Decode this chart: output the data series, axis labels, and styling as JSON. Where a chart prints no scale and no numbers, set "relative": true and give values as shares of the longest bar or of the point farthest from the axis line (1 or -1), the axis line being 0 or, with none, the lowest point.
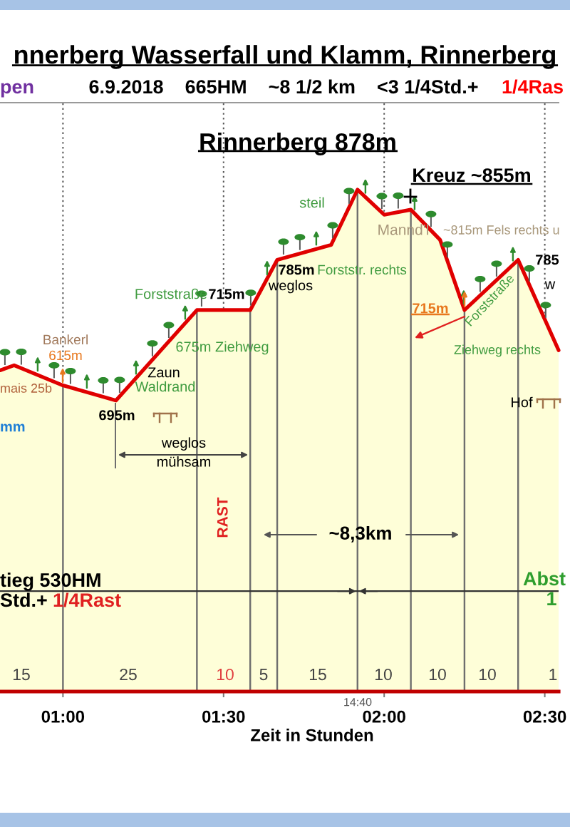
{
  "chart_data": {
    "type": "area",
    "title": "nnerberg Wasserfall und Klamm, Rinnerberg",
    "subtitle": "6.9.2018    665HM    ~8 1/2 km    <3 1/4Std.+",
    "xlabel": "Zeit in Stunden",
    "relative": true,
    "x": [
      0.804,
      0.848,
      1.0,
      1.165,
      1.417,
      1.583,
      1.667,
      1.835,
      1.917,
      2.0,
      2.083,
      2.174,
      2.25,
      2.417,
      2.543
    ],
    "series": [
      {
        "color": "#fefed8",
        "values": [
          0.64,
          0.65,
          0.61,
          0.58,
          0.76,
          0.76,
          0.86,
          0.89,
          1,
          0.95,
          0.96,
          0.9,
          0.76,
          0.86,
          0.68
        ]
      }
    ],
    "xlim": [
      0.804,
      2.543
    ],
    "xticks": [
      {
        "value": 1,
        "label": "01:00"
      },
      {
        "value": 1.5,
        "label": "01:30"
      },
      {
        "value": 2,
        "label": "02:00"
      },
      {
        "value": 2.5,
        "label": "02:30"
      }
    ],
    "grid": "x",
    "ref_lines": [
      {
        "axis": "x",
        "value": 1.0,
        "color": "#6e6e6e"
      },
      {
        "axis": "x",
        "value": 1.417,
        "color": "#6e6e6e"
      },
      {
        "axis": "x",
        "value": 1.583,
        "color": "#6e6e6e"
      },
      {
        "axis": "x",
        "value": 1.667,
        "color": "#6e6e6e"
      },
      {
        "axis": "x",
        "value": 1.917,
        "color": "#6e6e6e"
      },
      {
        "axis": "x",
        "value": 2.083,
        "color": "#6e6e6e"
      },
      {
        "axis": "x",
        "value": 2.25,
        "color": "#6e6e6e"
      },
      {
        "axis": "x",
        "value": 2.417,
        "color": "#6e6e6e"
      },
      {
        "axis": "y",
        "value": 0.2,
        "color": "#333333"
      }
    ],
    "annotations": [
      "pen",
      "1/4Ras",
      "Rinnerberg 878m",
      "Kreuz ~855m",
      "steil",
      "Mannd'l",
      "~815m Fels rechts u",
      "785m",
      "Forststr. rechts",
      "weglos",
      "Forststraße",
      "715m",
      "675m Ziehweg",
      "Bankerl",
      "615m",
      "mais 25b",
      "Zaun",
      "Waldrand",
      "695m",
      "mm",
      "weglos\nmühsam",
      "RAST",
      "~8,3km",
      "tieg 530HM",
      "Std.+",
      "1/4Rast",
      "Abst",
      "1",
      "Hof",
      "Ziehweg rechts",
      "715m",
      "Forststraße",
      "785",
      "w",
      "14:40",
      "15",
      "25",
      "10",
      "5",
      "15",
      "10",
      "10",
      "10",
      "1"
    ]
  }
}
